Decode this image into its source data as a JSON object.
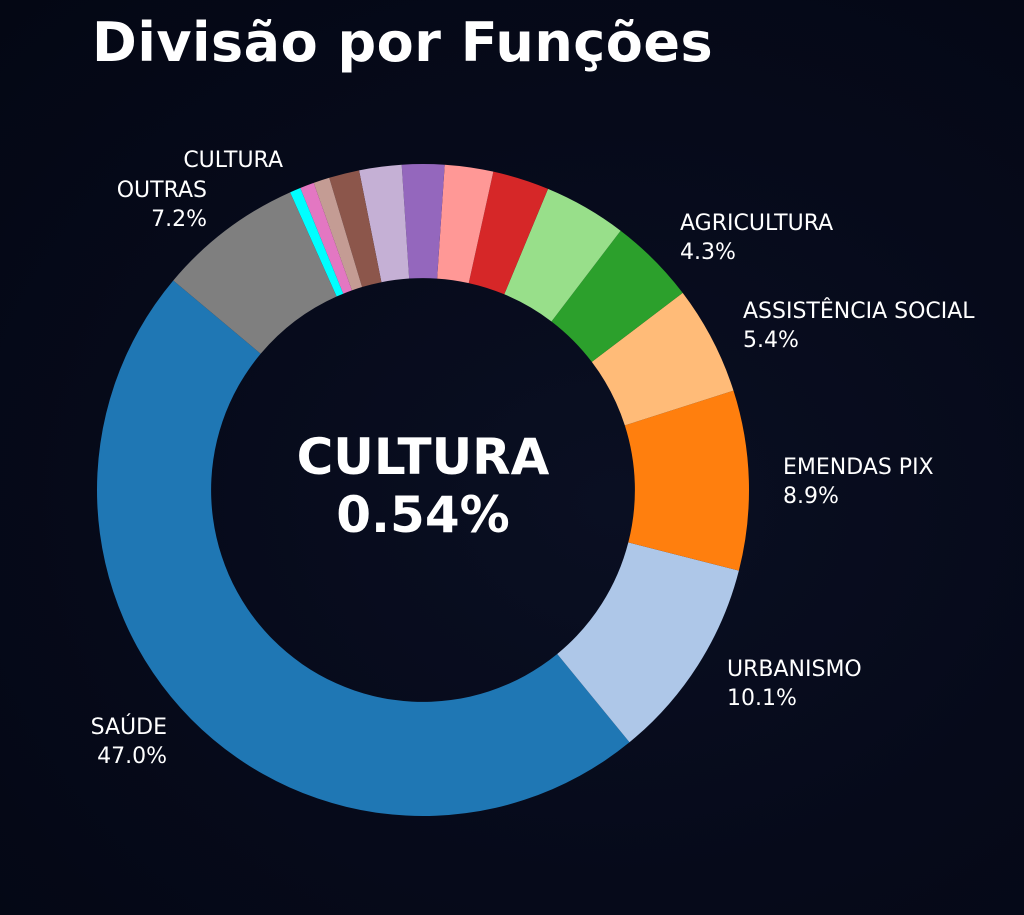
{
  "title": "Divisão por Funções",
  "center": {
    "name": "CULTURA",
    "value": "0.54%"
  },
  "labels": {
    "cultura": {
      "name": "CULTURA",
      "value": ""
    },
    "outras": {
      "name": "OUTRAS",
      "value": "7.2%"
    },
    "agricultura": {
      "name": "AGRICULTURA",
      "value": "4.3%"
    },
    "assistencia": {
      "name": "ASSISTÊNCIA SOCIAL",
      "value": "5.4%"
    },
    "emendas": {
      "name": "EMENDAS PIX",
      "value": "8.9%"
    },
    "urbanismo": {
      "name": "URBANISMO",
      "value": "10.1%"
    },
    "saude": {
      "name": "SAÚDE",
      "value": "47.0%"
    }
  },
  "colors": {
    "background": "#060a1a",
    "highlight": "#00ffff"
  },
  "chart_data": {
    "type": "pie",
    "subtype": "donut",
    "title": "Divisão por Funções",
    "center_annotation": "CULTURA 0.54%",
    "start_angle_deg": 140,
    "direction": "counterclockwise",
    "inner_radius_ratio": 0.65,
    "highlighted": "CULTURA",
    "slices": [
      {
        "label": "SAÚDE",
        "value": 47.0,
        "color": "#1f77b4",
        "show_label": true
      },
      {
        "label": "URBANISMO",
        "value": 10.1,
        "color": "#aec7e8",
        "show_label": true
      },
      {
        "label": "EMENDAS PIX",
        "value": 8.9,
        "color": "#ff7f0e",
        "show_label": true
      },
      {
        "label": "ASSISTÊNCIA SOCIAL",
        "value": 5.4,
        "color": "#ffbb78",
        "show_label": true
      },
      {
        "label": "AGRICULTURA",
        "value": 4.3,
        "color": "#2ca02c",
        "show_label": true
      },
      {
        "label": "",
        "value": 4.1,
        "color": "#98df8a",
        "show_label": false
      },
      {
        "label": "",
        "value": 2.8,
        "color": "#d62728",
        "show_label": false
      },
      {
        "label": "",
        "value": 2.4,
        "color": "#ff9896",
        "show_label": false
      },
      {
        "label": "",
        "value": 2.1,
        "color": "#9467bd",
        "show_label": false
      },
      {
        "label": "",
        "value": 2.1,
        "color": "#c5b0d5",
        "show_label": false
      },
      {
        "label": "",
        "value": 1.5,
        "color": "#8c564b",
        "show_label": false
      },
      {
        "label": "",
        "value": 0.8,
        "color": "#c49c94",
        "show_label": false
      },
      {
        "label": "",
        "value": 0.7,
        "color": "#e377c2",
        "show_label": false
      },
      {
        "label": "CULTURA",
        "value": 0.54,
        "color": "#00ffff",
        "show_label": true
      },
      {
        "label": "OUTRAS",
        "value": 7.2,
        "color": "#7f7f7f",
        "show_label": true
      }
    ],
    "legend": "none",
    "grid": false
  }
}
